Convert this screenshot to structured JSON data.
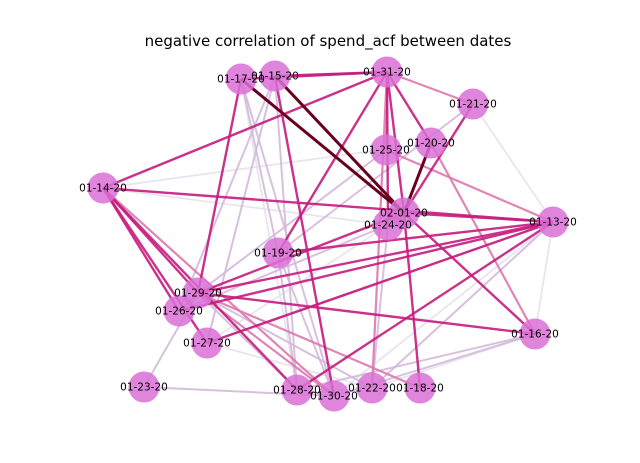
{
  "title": "negative correlation of spend_acf between dates",
  "colors": {
    "node_fill": "#DA70D6",
    "edge_dark": "#67001f",
    "edge_strong": "#c51b7d",
    "edge_medium": "#de77ae",
    "edge_light": "#d4b9da",
    "edge_faint": "#e7e1ef"
  },
  "nodes": [
    {
      "id": "01-13-20",
      "label": "01-13-20"
    },
    {
      "id": "01-14-20",
      "label": "01-14-20"
    },
    {
      "id": "01-15-20",
      "label": "01-15-20"
    },
    {
      "id": "01-16-20",
      "label": "01-16-20"
    },
    {
      "id": "01-17-20",
      "label": "01-17-20"
    },
    {
      "id": "01-18-20",
      "label": "01-18-20"
    },
    {
      "id": "01-19-20",
      "label": "01-19-20"
    },
    {
      "id": "01-20-20",
      "label": "01-20-20"
    },
    {
      "id": "01-21-20",
      "label": "01-21-20"
    },
    {
      "id": "01-22-20",
      "label": "01-22-20"
    },
    {
      "id": "01-23-20",
      "label": "01-23-20"
    },
    {
      "id": "01-24-20",
      "label": "01-24-20"
    },
    {
      "id": "01-25-20",
      "label": "01-25-20"
    },
    {
      "id": "01-26-20",
      "label": "01-26-20"
    },
    {
      "id": "01-27-20",
      "label": "01-27-20"
    },
    {
      "id": "01-28-20",
      "label": "01-28-20"
    },
    {
      "id": "01-29-20",
      "label": "01-29-20"
    },
    {
      "id": "01-30-20",
      "label": "01-30-20"
    },
    {
      "id": "01-31-20",
      "label": "01-31-20"
    },
    {
      "id": "02-01-20",
      "label": "02-01-20"
    }
  ],
  "edges": [
    {
      "source": "01-17-20",
      "target": "02-01-20",
      "strength": "dark"
    },
    {
      "source": "01-15-20",
      "target": "02-01-20",
      "strength": "dark"
    },
    {
      "source": "01-20-20",
      "target": "02-01-20",
      "strength": "dark"
    },
    {
      "source": "01-21-20",
      "target": "02-01-20",
      "strength": "strong"
    },
    {
      "source": "01-14-20",
      "target": "01-13-20",
      "strength": "strong"
    },
    {
      "source": "01-15-20",
      "target": "01-31-20",
      "strength": "strong"
    },
    {
      "source": "01-17-20",
      "target": "01-31-20",
      "strength": "strong"
    },
    {
      "source": "01-31-20",
      "target": "01-19-20",
      "strength": "strong"
    },
    {
      "source": "01-31-20",
      "target": "02-01-20",
      "strength": "strong"
    },
    {
      "source": "01-31-20",
      "target": "01-24-20",
      "strength": "strong"
    },
    {
      "source": "01-31-20",
      "target": "01-20-20",
      "strength": "strong"
    },
    {
      "source": "01-14-20",
      "target": "01-31-20",
      "strength": "strong"
    },
    {
      "source": "01-14-20",
      "target": "01-29-20",
      "strength": "strong"
    },
    {
      "source": "01-14-20",
      "target": "01-26-20",
      "strength": "strong"
    },
    {
      "source": "01-14-20",
      "target": "01-27-20",
      "strength": "strong"
    },
    {
      "source": "01-14-20",
      "target": "01-28-20",
      "strength": "strong"
    },
    {
      "source": "01-29-20",
      "target": "01-16-20",
      "strength": "strong"
    },
    {
      "source": "01-29-20",
      "target": "02-01-20",
      "strength": "strong"
    },
    {
      "source": "01-29-20",
      "target": "01-13-20",
      "strength": "strong"
    },
    {
      "source": "01-26-20",
      "target": "01-13-20",
      "strength": "strong"
    },
    {
      "source": "01-19-20",
      "target": "01-13-20",
      "strength": "strong"
    },
    {
      "source": "02-01-20",
      "target": "01-13-20",
      "strength": "strong"
    },
    {
      "source": "02-01-20",
      "target": "01-16-20",
      "strength": "strong"
    },
    {
      "source": "02-01-20",
      "target": "01-18-20",
      "strength": "strong"
    },
    {
      "source": "01-28-20",
      "target": "01-13-20",
      "strength": "strong"
    },
    {
      "source": "01-15-20",
      "target": "01-30-20",
      "strength": "strong"
    },
    {
      "source": "01-17-20",
      "target": "01-29-20",
      "strength": "strong"
    },
    {
      "source": "01-27-20",
      "target": "01-13-20",
      "strength": "strong"
    },
    {
      "source": "01-31-20",
      "target": "01-21-20",
      "strength": "medium"
    },
    {
      "source": "01-31-20",
      "target": "01-25-20",
      "strength": "medium"
    },
    {
      "source": "01-25-20",
      "target": "01-13-20",
      "strength": "medium"
    },
    {
      "source": "01-20-20",
      "target": "01-16-20",
      "strength": "medium"
    },
    {
      "source": "01-31-20",
      "target": "01-22-20",
      "strength": "medium"
    },
    {
      "source": "01-29-20",
      "target": "01-18-20",
      "strength": "medium"
    },
    {
      "source": "01-29-20",
      "target": "01-30-20",
      "strength": "medium"
    },
    {
      "source": "01-14-20",
      "target": "01-30-20",
      "strength": "medium"
    },
    {
      "source": "01-17-20",
      "target": "01-19-20",
      "strength": "light"
    },
    {
      "source": "01-15-20",
      "target": "01-28-20",
      "strength": "light"
    },
    {
      "source": "01-17-20",
      "target": "01-30-20",
      "strength": "light"
    },
    {
      "source": "01-23-20",
      "target": "01-29-20",
      "strength": "light"
    },
    {
      "source": "01-23-20",
      "target": "01-30-20",
      "strength": "light"
    },
    {
      "source": "01-29-20",
      "target": "01-28-20",
      "strength": "light"
    },
    {
      "source": "01-29-20",
      "target": "01-22-20",
      "strength": "light"
    },
    {
      "source": "01-15-20",
      "target": "01-26-20",
      "strength": "light"
    },
    {
      "source": "01-15-20",
      "target": "01-27-20",
      "strength": "light"
    },
    {
      "source": "01-19-20",
      "target": "01-28-20",
      "strength": "light"
    },
    {
      "source": "01-19-20",
      "target": "01-30-20",
      "strength": "light"
    },
    {
      "source": "01-25-20",
      "target": "01-29-20",
      "strength": "light"
    },
    {
      "source": "01-24-20",
      "target": "01-26-20",
      "strength": "light"
    },
    {
      "source": "01-24-20",
      "target": "01-22-20",
      "strength": "light"
    },
    {
      "source": "01-13-20",
      "target": "01-27-20",
      "strength": "light"
    },
    {
      "source": "01-13-20",
      "target": "01-22-20",
      "strength": "light"
    },
    {
      "source": "01-28-20",
      "target": "01-16-20",
      "strength": "light"
    },
    {
      "source": "01-16-20",
      "target": "01-30-20",
      "strength": "light"
    },
    {
      "source": "01-21-20",
      "target": "01-19-20",
      "strength": "light"
    },
    {
      "source": "01-26-20",
      "target": "01-29-20",
      "strength": "light"
    },
    {
      "source": "01-14-20",
      "target": "01-20-20",
      "strength": "faint"
    },
    {
      "source": "01-14-20",
      "target": "01-24-20",
      "strength": "faint"
    },
    {
      "source": "01-21-20",
      "target": "01-13-20",
      "strength": "faint"
    },
    {
      "source": "01-17-20",
      "target": "01-28-20",
      "strength": "faint"
    },
    {
      "source": "01-13-20",
      "target": "01-30-20",
      "strength": "faint"
    },
    {
      "source": "01-16-20",
      "target": "01-22-20",
      "strength": "faint"
    },
    {
      "source": "01-27-20",
      "target": "01-24-20",
      "strength": "faint"
    },
    {
      "source": "01-27-20",
      "target": "01-22-20",
      "strength": "faint"
    },
    {
      "source": "01-13-20",
      "target": "01-16-20",
      "strength": "faint"
    }
  ]
}
